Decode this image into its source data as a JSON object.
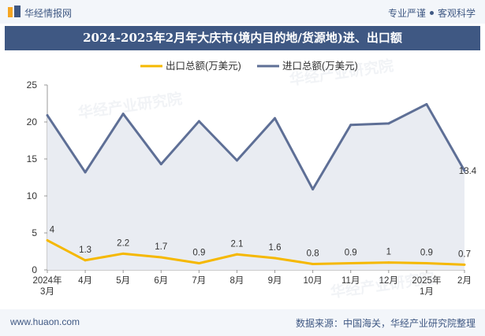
{
  "header": {
    "brand": "华经情报网",
    "tag1": "专业严谨",
    "tag2": "客观科学"
  },
  "title": "2024-2025年2月年大庆市(境内目的地/货源地)进、出口额",
  "footer": {
    "site": "www.huaon.com",
    "source": "数据来源：中国海关，华经产业研究院整理"
  },
  "watermark": "华经产业研究院",
  "colors": {
    "export": "#f5b800",
    "import": "#5e6f96",
    "header": "#3f5883"
  },
  "chart_data": {
    "type": "line",
    "categories": [
      [
        "2024年",
        "3月"
      ],
      [
        "4月"
      ],
      [
        "5月"
      ],
      [
        "6月"
      ],
      [
        "7月"
      ],
      [
        "8月"
      ],
      [
        "9月"
      ],
      [
        "10月"
      ],
      [
        "11月"
      ],
      [
        "12月"
      ],
      [
        "2025年",
        "1月"
      ],
      [
        "2月"
      ]
    ],
    "series": [
      {
        "name": "出口总额(万美元)",
        "values": [
          4,
          1.3,
          2.2,
          1.7,
          0.9,
          2.1,
          1.6,
          0.8,
          0.9,
          1,
          0.9,
          0.7
        ],
        "labels": [
          "4",
          "1.3",
          "2.2",
          "1.7",
          "0.9",
          "2.1",
          "1.6",
          "0.8",
          "0.9",
          "1",
          "0.9",
          "0.7"
        ]
      },
      {
        "name": "进口总额(万美元)",
        "values": [
          20.9,
          13.2,
          21.1,
          14.3,
          20.1,
          14.8,
          20.5,
          10.9,
          19.6,
          19.8,
          22.4,
          13.4
        ],
        "labels": [
          "",
          "",
          "",
          "",
          "",
          "",
          "",
          "",
          "",
          "",
          "",
          "13.4"
        ]
      }
    ],
    "ylim": [
      0,
      25
    ],
    "yticks": [
      "0",
      "5",
      "10",
      "15",
      "20",
      "25"
    ],
    "xlabel": "",
    "ylabel": "",
    "grid": false,
    "legend": "top-center"
  }
}
